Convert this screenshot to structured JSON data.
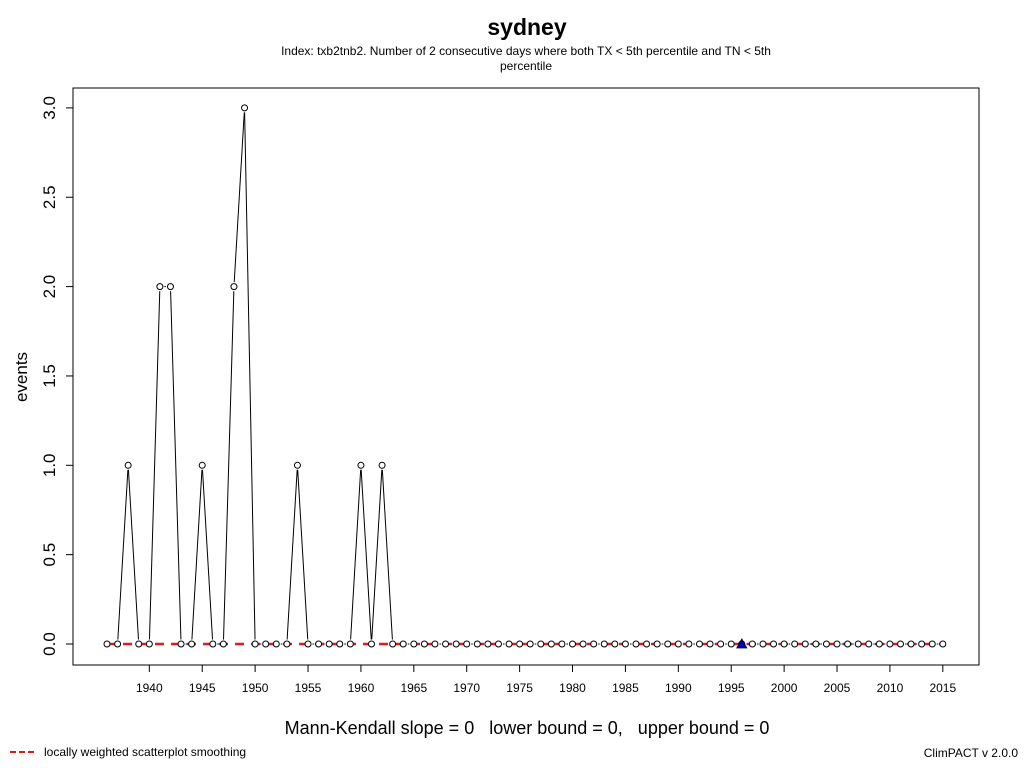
{
  "title": "sydney",
  "subtitle": "Index: txb2tnb2. Number of 2 consecutive days where both TX < 5th percentile and TN < 5th percentile",
  "trend_text": "Mann-Kendall slope = 0   lower bound = 0,   upper bound = 0",
  "legend": {
    "label": "locally weighted scatterplot smoothing",
    "color": "#e31a1c"
  },
  "footer": {
    "version": "ClimPACT v 2.0.0"
  },
  "chart_data": {
    "type": "line",
    "ylabel": "events",
    "xlabel": "",
    "xlim": [
      1936,
      2015
    ],
    "ylim": [
      0,
      3
    ],
    "x_ticks": [
      1940,
      1945,
      1950,
      1955,
      1960,
      1965,
      1970,
      1975,
      1980,
      1985,
      1990,
      1995,
      2000,
      2005,
      2010,
      2015
    ],
    "y_ticks": [
      0.0,
      0.5,
      1.0,
      1.5,
      2.0,
      2.5,
      3.0
    ],
    "series": [
      {
        "x": [
          1936,
          1937,
          1938,
          1939,
          1940,
          1941,
          1942,
          1943,
          1944,
          1945,
          1946,
          1947,
          1948,
          1949,
          1950,
          1951,
          1952,
          1953,
          1954,
          1955,
          1956,
          1957,
          1958,
          1959,
          1960,
          1961,
          1962,
          1963,
          1964,
          1965,
          1966,
          1967,
          1968,
          1969,
          1970,
          1971,
          1972,
          1973,
          1974,
          1975,
          1976,
          1977,
          1978,
          1979,
          1980,
          1981,
          1982,
          1983,
          1984,
          1985,
          1986,
          1987,
          1988,
          1989,
          1990,
          1991,
          1992,
          1993,
          1994,
          1995,
          1996,
          1997,
          1998,
          1999,
          2000,
          2001,
          2002,
          2003,
          2004,
          2005,
          2006,
          2007,
          2008,
          2009,
          2010,
          2011,
          2012,
          2013,
          2014,
          2015
        ],
        "values": [
          0,
          0,
          1,
          0,
          0,
          2,
          2,
          0,
          0,
          1,
          0,
          0,
          2,
          3,
          0,
          0,
          0,
          0,
          1,
          0,
          0,
          0,
          0,
          0,
          1,
          0,
          1,
          0,
          0,
          0,
          0,
          0,
          0,
          0,
          0,
          0,
          0,
          0,
          0,
          0,
          0,
          0,
          0,
          0,
          0,
          0,
          0,
          0,
          0,
          0,
          0,
          0,
          0,
          0,
          0,
          0,
          0,
          0,
          0,
          0,
          0,
          0,
          0,
          0,
          0,
          0,
          0,
          0,
          0,
          0,
          0,
          0,
          0,
          0,
          0,
          0,
          0,
          0,
          0,
          0
        ],
        "color": "#000000"
      },
      {
        "x": [
          1936,
          2015
        ],
        "values": [
          0,
          0
        ],
        "color": "#e31a1c"
      }
    ],
    "annotations": [
      {
        "kind": "triangle-marker",
        "x": 1996,
        "y": 0,
        "color": "#0000cc"
      }
    ],
    "grid": false
  }
}
